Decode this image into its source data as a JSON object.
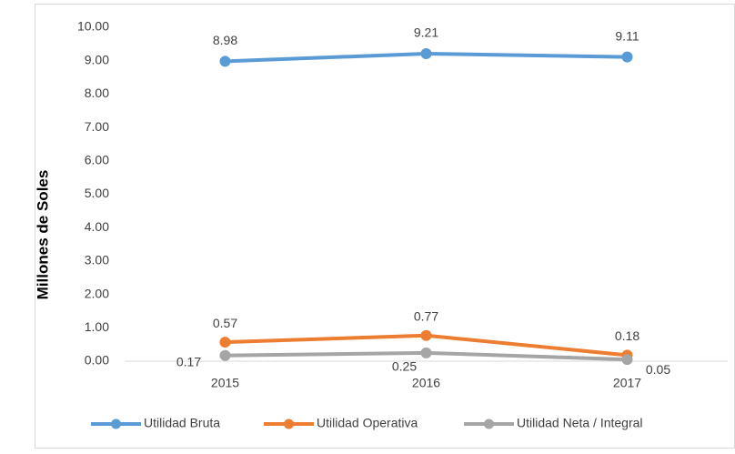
{
  "chart_data": {
    "type": "line",
    "y_label": "Millones de Soles",
    "categories": [
      "2015",
      "2016",
      "2017"
    ],
    "series": [
      {
        "name": "Utilidad Bruta",
        "color": "#5b9bd5",
        "values": [
          8.98,
          9.21,
          9.11
        ]
      },
      {
        "name": "Utilidad Operativa",
        "color": "#ed7d31",
        "values": [
          0.57,
          0.77,
          0.18
        ]
      },
      {
        "name": "Utilidad Neta / Integral",
        "color": "#a5a5a5",
        "values": [
          0.17,
          0.25,
          0.05
        ]
      }
    ],
    "ylim": [
      0,
      10
    ],
    "yticks": [
      {
        "value": 0,
        "label": "0.00"
      },
      {
        "value": 1,
        "label": "1.00"
      },
      {
        "value": 2,
        "label": "2.00"
      },
      {
        "value": 3,
        "label": "3.00"
      },
      {
        "value": 4,
        "label": "4.00"
      },
      {
        "value": 5,
        "label": "5.00"
      },
      {
        "value": 6,
        "label": "6.00"
      },
      {
        "value": 7,
        "label": "7.00"
      },
      {
        "value": 8,
        "label": "8.00"
      },
      {
        "value": 9,
        "label": "9.00"
      },
      {
        "value": 10,
        "label": "10.00"
      }
    ],
    "grid": false,
    "legend": "bottom"
  }
}
